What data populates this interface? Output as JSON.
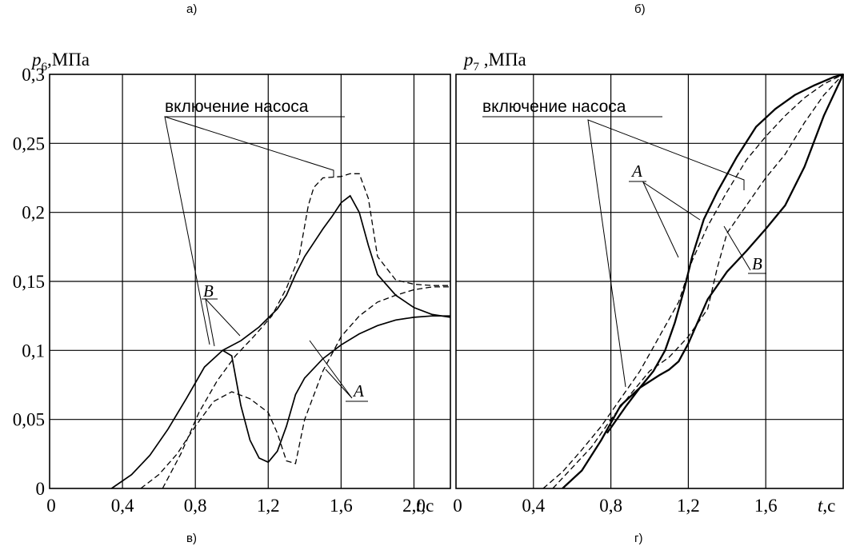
{
  "panel_letters": {
    "top_left": "а)",
    "top_right": "б)",
    "bottom_left": "в)",
    "bottom_right": "г)"
  },
  "chart_data": [
    {
      "type": "line",
      "panel": "в)",
      "ylabel": {
        "var": "p",
        "sub": "6",
        "unit": ",МПа"
      },
      "xlabel": {
        "var": "t",
        "unit": ",с"
      },
      "xlim": [
        0,
        2.2
      ],
      "ylim": [
        0,
        0.3
      ],
      "x_ticks": [
        "0",
        "0,4",
        "0,8",
        "1,2",
        "1,6",
        "2,0"
      ],
      "x_tick_values": [
        0,
        0.4,
        0.8,
        1.2,
        1.6,
        2.0
      ],
      "y_ticks": [
        "0",
        "0,05",
        "0,1",
        "0,15",
        "0,2",
        "0,25",
        "0,3"
      ],
      "y_tick_values": [
        0,
        0.05,
        0.1,
        0.15,
        0.2,
        0.25,
        0.3
      ],
      "grid": true,
      "annotations": {
        "pump": "включение насоса",
        "A": "A",
        "B": "B"
      },
      "series": [
        {
          "style": "solid",
          "x": [
            0.34,
            0.45,
            0.55,
            0.65,
            0.75,
            0.85,
            0.95,
            1.0,
            1.05,
            1.1,
            1.15,
            1.2,
            1.25,
            1.3,
            1.35,
            1.4,
            1.5,
            1.6,
            1.7,
            1.8,
            1.9,
            2.0,
            2.1,
            2.2
          ],
          "y": [
            0,
            0.01,
            0.024,
            0.043,
            0.065,
            0.088,
            0.1,
            0.096,
            0.06,
            0.035,
            0.022,
            0.019,
            0.027,
            0.045,
            0.068,
            0.08,
            0.094,
            0.104,
            0.112,
            0.118,
            0.122,
            0.124,
            0.125,
            0.125
          ]
        },
        {
          "style": "solid",
          "x": [
            0.95,
            1.05,
            1.15,
            1.25,
            1.3,
            1.35,
            1.4,
            1.45,
            1.5,
            1.55,
            1.6,
            1.65,
            1.7,
            1.75,
            1.8,
            1.9,
            2.0,
            2.1,
            2.2
          ],
          "y": [
            0.1,
            0.107,
            0.117,
            0.13,
            0.14,
            0.155,
            0.168,
            0.178,
            0.188,
            0.197,
            0.207,
            0.212,
            0.2,
            0.176,
            0.155,
            0.14,
            0.131,
            0.126,
            0.124
          ]
        },
        {
          "style": "dashed",
          "x": [
            0.5,
            0.6,
            0.7,
            0.8,
            0.9,
            1.0,
            1.1,
            1.2,
            1.25,
            1.3,
            1.35,
            1.4,
            1.5,
            1.6,
            1.7,
            1.8,
            1.9,
            2.0,
            2.1,
            2.2
          ],
          "y": [
            0,
            0.01,
            0.025,
            0.045,
            0.063,
            0.07,
            0.065,
            0.055,
            0.04,
            0.02,
            0.018,
            0.05,
            0.085,
            0.11,
            0.125,
            0.135,
            0.14,
            0.144,
            0.146,
            0.146
          ]
        },
        {
          "style": "dashed",
          "x": [
            0.62,
            0.72,
            0.82,
            0.92,
            1.02,
            1.12,
            1.22,
            1.3,
            1.37,
            1.42,
            1.45,
            1.5,
            1.6,
            1.65,
            1.7,
            1.75,
            1.8,
            1.9,
            2.0,
            2.1,
            2.2
          ],
          "y": [
            0,
            0.025,
            0.055,
            0.078,
            0.096,
            0.11,
            0.125,
            0.145,
            0.168,
            0.205,
            0.218,
            0.225,
            0.226,
            0.228,
            0.228,
            0.21,
            0.168,
            0.151,
            0.148,
            0.147,
            0.147
          ]
        }
      ]
    },
    {
      "type": "line",
      "panel": "г)",
      "ylabel": {
        "var": "p",
        "sub": "7",
        "unit": " ,МПа"
      },
      "xlabel": {
        "var": "t",
        "unit": ",с"
      },
      "xlim": [
        0,
        2.0
      ],
      "ylim": [
        0,
        0.3
      ],
      "x_ticks": [
        "0",
        "0,4",
        "0,8",
        "1,2",
        "1,6"
      ],
      "x_tick_values": [
        0,
        0.4,
        0.8,
        1.2,
        1.6
      ],
      "y_tick_values": [
        0,
        0.05,
        0.1,
        0.15,
        0.2,
        0.25,
        0.3
      ],
      "grid": true,
      "annotations": {
        "pump": "включение насоса",
        "A": "A",
        "B": "B"
      },
      "series": [
        {
          "style": "bold",
          "x": [
            0.55,
            0.65,
            0.75,
            0.85,
            0.95,
            1.05,
            1.1,
            1.15,
            1.2,
            1.3,
            1.4,
            1.5,
            1.6,
            1.7,
            1.8,
            1.9,
            2.0
          ],
          "y": [
            0,
            0.013,
            0.035,
            0.06,
            0.073,
            0.082,
            0.086,
            0.092,
            0.105,
            0.137,
            0.157,
            0.172,
            0.188,
            0.205,
            0.233,
            0.27,
            0.3
          ]
        },
        {
          "style": "bold",
          "x": [
            0.78,
            0.88,
            0.95,
            1.02,
            1.08,
            1.13,
            1.18,
            1.22,
            1.28,
            1.35,
            1.45,
            1.55,
            1.65,
            1.75,
            1.85,
            1.95,
            2.0
          ],
          "y": [
            0.04,
            0.06,
            0.073,
            0.085,
            0.1,
            0.12,
            0.145,
            0.168,
            0.195,
            0.215,
            0.24,
            0.262,
            0.275,
            0.285,
            0.292,
            0.298,
            0.3
          ]
        },
        {
          "style": "dashed",
          "x": [
            0.45,
            0.55,
            0.65,
            0.75,
            0.85,
            0.95,
            1.05,
            1.15,
            1.22,
            1.3,
            1.4,
            1.5,
            1.6,
            1.7,
            1.8,
            1.9,
            2.0
          ],
          "y": [
            0,
            0.012,
            0.028,
            0.045,
            0.065,
            0.085,
            0.11,
            0.135,
            0.165,
            0.19,
            0.215,
            0.238,
            0.255,
            0.27,
            0.283,
            0.293,
            0.3
          ]
        },
        {
          "style": "dashed",
          "x": [
            0.5,
            0.6,
            0.7,
            0.8,
            0.9,
            1.0,
            1.1,
            1.2,
            1.3,
            1.35,
            1.4,
            1.5,
            1.6,
            1.7,
            1.8,
            1.9,
            2.0
          ],
          "y": [
            0,
            0.015,
            0.03,
            0.05,
            0.068,
            0.085,
            0.095,
            0.11,
            0.13,
            0.16,
            0.185,
            0.205,
            0.225,
            0.242,
            0.265,
            0.285,
            0.3
          ]
        }
      ]
    }
  ]
}
